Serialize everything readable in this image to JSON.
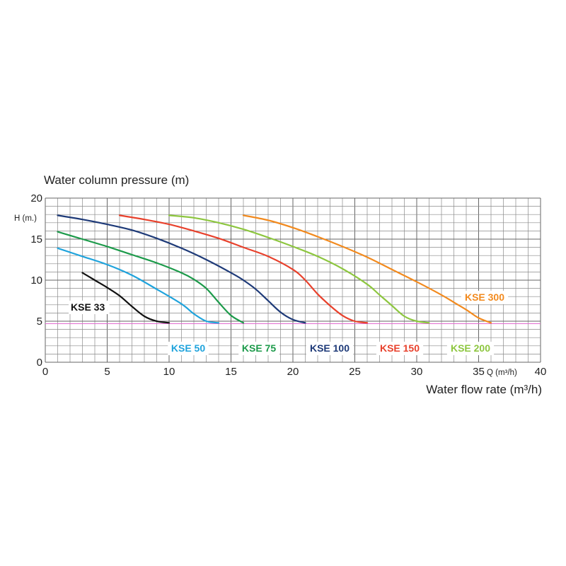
{
  "chart_data": {
    "type": "line",
    "title": "Water column pressure (m)",
    "ylabel": "H (m.)",
    "xlabel": "Water flow rate (m³/h)",
    "x_unit_label": "Q (m³/h)",
    "xlim": [
      0,
      40
    ],
    "ylim": [
      0,
      20
    ],
    "x_ticks": [
      "0",
      "5",
      "10",
      "15",
      "20",
      "25",
      "30",
      "35",
      "40"
    ],
    "y_ticks": [
      "0",
      "5",
      "10",
      "15",
      "20"
    ],
    "grid": true,
    "reference_line_y": 4.7,
    "series": [
      {
        "name": "KSE 33",
        "color": "#111111",
        "points": [
          [
            3,
            10.9
          ],
          [
            4,
            10.0
          ],
          [
            5,
            9.1
          ],
          [
            6,
            8.1
          ],
          [
            7,
            6.8
          ],
          [
            8,
            5.6
          ],
          [
            9,
            5.0
          ],
          [
            10,
            4.8
          ]
        ]
      },
      {
        "name": "KSE 50",
        "color": "#1fa3dc",
        "points": [
          [
            1,
            13.9
          ],
          [
            3,
            12.9
          ],
          [
            5,
            11.9
          ],
          [
            7,
            10.6
          ],
          [
            9,
            8.9
          ],
          [
            11,
            7.1
          ],
          [
            12,
            5.9
          ],
          [
            13,
            5.0
          ],
          [
            14,
            4.8
          ]
        ]
      },
      {
        "name": "KSE 75",
        "color": "#1c9a4a",
        "points": [
          [
            1,
            15.9
          ],
          [
            3,
            15.0
          ],
          [
            5,
            14.1
          ],
          [
            7,
            13.1
          ],
          [
            9,
            12.1
          ],
          [
            11,
            10.9
          ],
          [
            12,
            10.1
          ],
          [
            13,
            9.0
          ],
          [
            14,
            7.3
          ],
          [
            15,
            5.7
          ],
          [
            16,
            4.8
          ]
        ]
      },
      {
        "name": "KSE 100",
        "color": "#1e3a78",
        "points": [
          [
            1,
            17.9
          ],
          [
            3,
            17.4
          ],
          [
            5,
            16.8
          ],
          [
            7,
            16.1
          ],
          [
            9,
            15.1
          ],
          [
            11,
            13.9
          ],
          [
            13,
            12.5
          ],
          [
            15,
            10.9
          ],
          [
            16,
            10.0
          ],
          [
            17,
            8.9
          ],
          [
            18,
            7.5
          ],
          [
            19,
            6.1
          ],
          [
            20,
            5.2
          ],
          [
            21,
            4.8
          ]
        ]
      },
      {
        "name": "KSE 150",
        "color": "#e8412c",
        "points": [
          [
            6,
            17.9
          ],
          [
            8,
            17.4
          ],
          [
            10,
            16.8
          ],
          [
            12,
            16.0
          ],
          [
            14,
            15.1
          ],
          [
            16,
            14.0
          ],
          [
            18,
            12.9
          ],
          [
            20,
            11.3
          ],
          [
            21,
            10.0
          ],
          [
            22,
            8.3
          ],
          [
            23,
            6.9
          ],
          [
            24,
            5.7
          ],
          [
            25,
            5.0
          ],
          [
            26,
            4.8
          ]
        ]
      },
      {
        "name": "KSE 200",
        "color": "#8dc63f",
        "points": [
          [
            10,
            17.9
          ],
          [
            12,
            17.6
          ],
          [
            14,
            17.0
          ],
          [
            16,
            16.2
          ],
          [
            18,
            15.2
          ],
          [
            20,
            14.1
          ],
          [
            22,
            12.9
          ],
          [
            24,
            11.4
          ],
          [
            26,
            9.5
          ],
          [
            27,
            8.2
          ],
          [
            28,
            6.9
          ],
          [
            29,
            5.6
          ],
          [
            30,
            5.0
          ],
          [
            31,
            4.8
          ]
        ]
      },
      {
        "name": "KSE 300",
        "color": "#f28a1e",
        "points": [
          [
            16,
            17.9
          ],
          [
            18,
            17.3
          ],
          [
            20,
            16.4
          ],
          [
            22,
            15.3
          ],
          [
            24,
            14.1
          ],
          [
            26,
            12.8
          ],
          [
            28,
            11.3
          ],
          [
            30,
            9.8
          ],
          [
            32,
            8.2
          ],
          [
            33,
            7.3
          ],
          [
            34,
            6.4
          ],
          [
            35,
            5.4
          ],
          [
            36,
            4.8
          ]
        ]
      }
    ]
  }
}
